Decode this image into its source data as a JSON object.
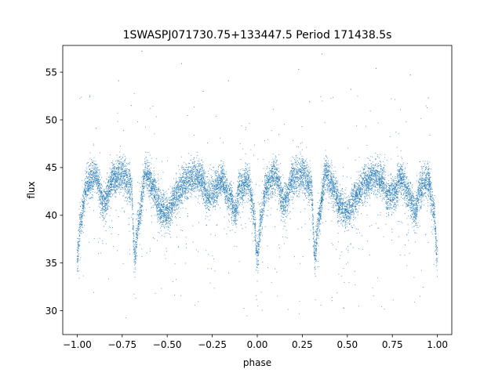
{
  "chart_data": {
    "type": "scatter",
    "title": "1SWASPJ071730.75+133447.5 Period 171438.5s",
    "xlabel": "phase",
    "ylabel": "flux",
    "xlim": [
      -1.08,
      1.08
    ],
    "ylim": [
      27.5,
      57.8
    ],
    "xticks": [
      -1.0,
      -0.75,
      -0.5,
      -0.25,
      0.0,
      0.25,
      0.5,
      0.75,
      1.0
    ],
    "xtick_labels": [
      "−1.00",
      "−0.75",
      "−0.50",
      "−0.25",
      "0.00",
      "0.25",
      "0.50",
      "0.75",
      "1.00"
    ],
    "yticks": [
      30,
      35,
      40,
      45,
      50,
      55
    ],
    "ytick_labels": [
      "30",
      "35",
      "40",
      "45",
      "50",
      "55"
    ],
    "grid": false,
    "marker_color": "#1f77b4",
    "phase_range": [
      -1.0,
      1.0
    ],
    "light_curve_profile": {
      "phase": [
        -0.5,
        -0.45,
        -0.4,
        -0.35,
        -0.3,
        -0.28,
        -0.25,
        -0.2,
        -0.15,
        -0.12,
        -0.1,
        -0.05,
        -0.02,
        0.0,
        0.02,
        0.05,
        0.1,
        0.15,
        0.2,
        0.25,
        0.3,
        0.32,
        0.34,
        0.38,
        0.42,
        0.46,
        0.5
      ],
      "flux": [
        40.3,
        42.0,
        43.5,
        44.0,
        43.6,
        42.0,
        42.2,
        43.8,
        41.8,
        40.2,
        42.8,
        43.6,
        40.5,
        35.6,
        39.5,
        43.0,
        44.2,
        41.3,
        43.8,
        44.3,
        43.0,
        35.6,
        39.5,
        44.4,
        43.0,
        40.8,
        40.3
      ]
    },
    "point_count": 12000,
    "scatter_spread": 0.9,
    "outlier_fraction": 0.06,
    "outlier_flux_range": [
      29,
      53
    ],
    "high_outliers": [
      {
        "x": -0.77,
        "y": 54.1
      },
      {
        "x": -0.42,
        "y": 55.9
      },
      {
        "x": -0.64,
        "y": 57.2
      },
      {
        "x": 0.23,
        "y": 55.3
      },
      {
        "x": 0.36,
        "y": 56.9
      },
      {
        "x": 0.66,
        "y": 55.4
      },
      {
        "x": -0.7,
        "y": 51.5
      },
      {
        "x": 0.29,
        "y": 51.9
      },
      {
        "x": 0.95,
        "y": 52.3
      },
      {
        "x": -0.16,
        "y": 54.1
      },
      {
        "x": 0.52,
        "y": 53.2
      },
      {
        "x": 0.85,
        "y": 54.7
      },
      {
        "x": -0.93,
        "y": 52.4
      },
      {
        "x": -0.3,
        "y": 53.0
      }
    ]
  }
}
